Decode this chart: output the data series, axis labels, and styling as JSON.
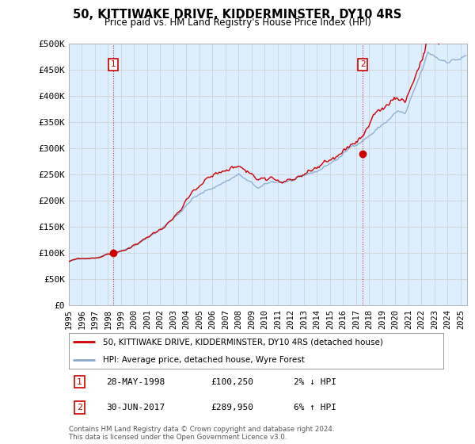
{
  "title": "50, KITTIWAKE DRIVE, KIDDERMINSTER, DY10 4RS",
  "subtitle": "Price paid vs. HM Land Registry's House Price Index (HPI)",
  "ylabel_ticks": [
    "£0",
    "£50K",
    "£100K",
    "£150K",
    "£200K",
    "£250K",
    "£300K",
    "£350K",
    "£400K",
    "£450K",
    "£500K"
  ],
  "ytick_vals": [
    0,
    50000,
    100000,
    150000,
    200000,
    250000,
    300000,
    350000,
    400000,
    450000,
    500000
  ],
  "ylim": [
    0,
    500000
  ],
  "xlim_start": 1995.0,
  "xlim_end": 2025.5,
  "sale1_date": 1998.41,
  "sale1_price": 100250,
  "sale2_date": 2017.5,
  "sale2_price": 289950,
  "property_line_color": "#cc0000",
  "hpi_line_color": "#88aacc",
  "annotation_box_color": "#cc0000",
  "vline_color": "#cc0000",
  "chart_bg_color": "#ddeeff",
  "legend_label1": "50, KITTIWAKE DRIVE, KIDDERMINSTER, DY10 4RS (detached house)",
  "legend_label2": "HPI: Average price, detached house, Wyre Forest",
  "table_row1_num": "1",
  "table_row1_date": "28-MAY-1998",
  "table_row1_price": "£100,250",
  "table_row1_hpi": "2% ↓ HPI",
  "table_row2_num": "2",
  "table_row2_date": "30-JUN-2017",
  "table_row2_price": "£289,950",
  "table_row2_hpi": "6% ↑ HPI",
  "footer": "Contains HM Land Registry data © Crown copyright and database right 2024.\nThis data is licensed under the Open Government Licence v3.0.",
  "background_color": "#ffffff",
  "grid_color": "#cccccc"
}
